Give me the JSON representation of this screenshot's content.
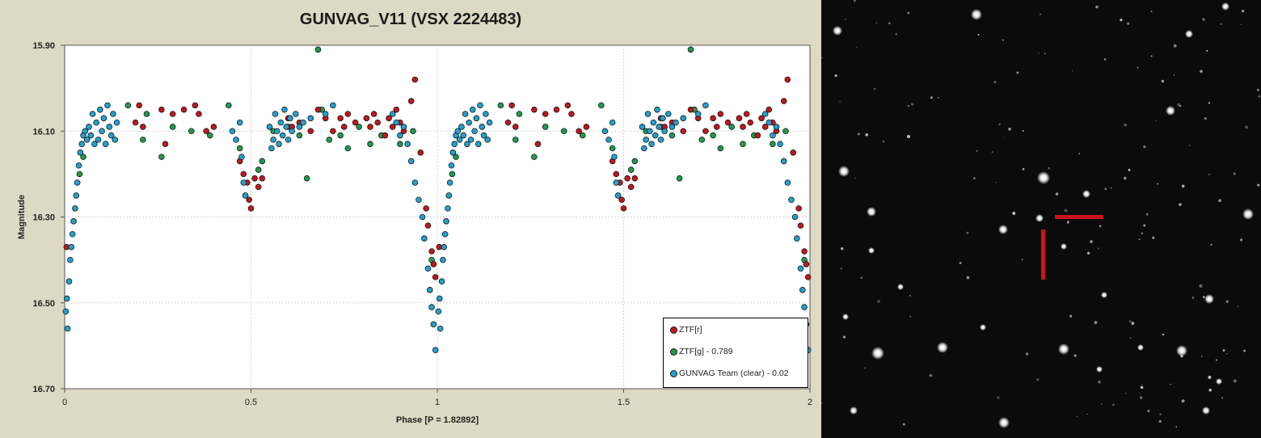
{
  "chart_data": {
    "type": "scatter",
    "title": "GUNVAG_V11 (VSX 2224483)",
    "xlabel": "Phase [P = 1.82892]",
    "ylabel": "Magnitude",
    "xlim": [
      0,
      2
    ],
    "ylim": [
      16.7,
      15.9
    ],
    "y_inverted": true,
    "x_ticks": [
      "0",
      "0.5",
      "1",
      "1.5",
      "2"
    ],
    "y_ticks": [
      "15.90",
      "16.10",
      "16.30",
      "16.50",
      "16.70"
    ],
    "grid": true,
    "legend_position": "bottom-right",
    "repeated_phase_copy": true,
    "series": [
      {
        "name": "ZTF[r]",
        "color": "#c0171c",
        "points": [
          [
            0.005,
            16.37
          ],
          [
            0.19,
            16.08
          ],
          [
            0.2,
            16.04
          ],
          [
            0.21,
            16.09
          ],
          [
            0.26,
            16.05
          ],
          [
            0.27,
            16.13
          ],
          [
            0.29,
            16.06
          ],
          [
            0.32,
            16.05
          ],
          [
            0.35,
            16.04
          ],
          [
            0.36,
            16.06
          ],
          [
            0.38,
            16.1
          ],
          [
            0.4,
            16.09
          ],
          [
            0.47,
            16.17
          ],
          [
            0.48,
            16.2
          ],
          [
            0.49,
            16.22
          ],
          [
            0.495,
            16.26
          ],
          [
            0.5,
            16.28
          ],
          [
            0.51,
            16.21
          ],
          [
            0.52,
            16.23
          ],
          [
            0.53,
            16.21
          ],
          [
            0.6,
            16.07
          ],
          [
            0.61,
            16.09
          ],
          [
            0.63,
            16.08
          ],
          [
            0.66,
            16.1
          ],
          [
            0.68,
            16.05
          ],
          [
            0.7,
            16.07
          ],
          [
            0.72,
            16.1
          ],
          [
            0.74,
            16.07
          ],
          [
            0.75,
            16.09
          ],
          [
            0.76,
            16.06
          ],
          [
            0.78,
            16.08
          ],
          [
            0.81,
            16.07
          ],
          [
            0.82,
            16.09
          ],
          [
            0.83,
            16.06
          ],
          [
            0.84,
            16.08
          ],
          [
            0.86,
            16.11
          ],
          [
            0.87,
            16.07
          ],
          [
            0.88,
            16.09
          ],
          [
            0.89,
            16.05
          ],
          [
            0.9,
            16.08
          ],
          [
            0.91,
            16.1
          ],
          [
            0.93,
            16.03
          ],
          [
            0.94,
            15.98
          ],
          [
            0.955,
            16.15
          ],
          [
            0.97,
            16.28
          ],
          [
            0.975,
            16.32
          ],
          [
            0.985,
            16.38
          ],
          [
            0.99,
            16.41
          ],
          [
            0.995,
            16.44
          ],
          [
            1.005,
            16.37
          ],
          [
            1.19,
            16.08
          ],
          [
            1.2,
            16.04
          ],
          [
            1.21,
            16.09
          ],
          [
            1.26,
            16.05
          ],
          [
            1.27,
            16.13
          ],
          [
            1.29,
            16.06
          ],
          [
            1.32,
            16.05
          ],
          [
            1.35,
            16.04
          ],
          [
            1.36,
            16.06
          ],
          [
            1.38,
            16.1
          ],
          [
            1.4,
            16.09
          ],
          [
            1.47,
            16.17
          ],
          [
            1.48,
            16.2
          ],
          [
            1.49,
            16.22
          ],
          [
            1.495,
            16.26
          ],
          [
            1.5,
            16.28
          ],
          [
            1.51,
            16.21
          ],
          [
            1.52,
            16.23
          ],
          [
            1.53,
            16.21
          ],
          [
            1.6,
            16.07
          ],
          [
            1.61,
            16.09
          ],
          [
            1.63,
            16.08
          ],
          [
            1.66,
            16.1
          ],
          [
            1.68,
            16.05
          ],
          [
            1.7,
            16.07
          ],
          [
            1.72,
            16.1
          ],
          [
            1.74,
            16.07
          ],
          [
            1.75,
            16.09
          ],
          [
            1.76,
            16.06
          ],
          [
            1.78,
            16.08
          ],
          [
            1.81,
            16.07
          ],
          [
            1.82,
            16.09
          ],
          [
            1.83,
            16.06
          ],
          [
            1.84,
            16.08
          ],
          [
            1.86,
            16.11
          ],
          [
            1.87,
            16.07
          ],
          [
            1.88,
            16.09
          ],
          [
            1.89,
            16.05
          ],
          [
            1.9,
            16.08
          ],
          [
            1.91,
            16.1
          ],
          [
            1.93,
            16.03
          ],
          [
            1.94,
            15.98
          ],
          [
            1.955,
            16.15
          ],
          [
            1.97,
            16.28
          ],
          [
            1.975,
            16.32
          ],
          [
            1.985,
            16.38
          ],
          [
            1.99,
            16.41
          ],
          [
            1.995,
            16.44
          ]
        ]
      },
      {
        "name": "ZTF[g] - 0.789",
        "color": "#1e9a4e",
        "points": [
          [
            0.04,
            16.2
          ],
          [
            0.05,
            16.16
          ],
          [
            0.17,
            16.04
          ],
          [
            0.21,
            16.12
          ],
          [
            0.22,
            16.06
          ],
          [
            0.26,
            16.16
          ],
          [
            0.29,
            16.09
          ],
          [
            0.34,
            16.1
          ],
          [
            0.39,
            16.11
          ],
          [
            0.44,
            16.04
          ],
          [
            0.47,
            16.14
          ],
          [
            0.52,
            16.19
          ],
          [
            0.53,
            16.17
          ],
          [
            0.56,
            16.1
          ],
          [
            0.6,
            16.09
          ],
          [
            0.63,
            16.11
          ],
          [
            0.65,
            16.21
          ],
          [
            0.68,
            15.91
          ],
          [
            0.69,
            16.05
          ],
          [
            0.71,
            16.12
          ],
          [
            0.74,
            16.11
          ],
          [
            0.76,
            16.14
          ],
          [
            0.79,
            16.09
          ],
          [
            0.82,
            16.13
          ],
          [
            0.85,
            16.11
          ],
          [
            0.9,
            16.13
          ],
          [
            0.935,
            16.1
          ],
          [
            0.985,
            16.4
          ],
          [
            1.04,
            16.2
          ],
          [
            1.05,
            16.16
          ],
          [
            1.17,
            16.04
          ],
          [
            1.21,
            16.12
          ],
          [
            1.22,
            16.06
          ],
          [
            1.26,
            16.16
          ],
          [
            1.29,
            16.09
          ],
          [
            1.34,
            16.1
          ],
          [
            1.39,
            16.11
          ],
          [
            1.44,
            16.04
          ],
          [
            1.47,
            16.14
          ],
          [
            1.52,
            16.19
          ],
          [
            1.53,
            16.17
          ],
          [
            1.56,
            16.1
          ],
          [
            1.6,
            16.09
          ],
          [
            1.63,
            16.11
          ],
          [
            1.65,
            16.21
          ],
          [
            1.68,
            15.91
          ],
          [
            1.69,
            16.05
          ],
          [
            1.71,
            16.12
          ],
          [
            1.74,
            16.11
          ],
          [
            1.76,
            16.14
          ],
          [
            1.79,
            16.09
          ],
          [
            1.82,
            16.13
          ],
          [
            1.85,
            16.11
          ],
          [
            1.9,
            16.13
          ],
          [
            1.935,
            16.1
          ],
          [
            1.985,
            16.4
          ]
        ]
      },
      {
        "name": "GUNVAG Team (clear) - 0.02",
        "color": "#21a1cf",
        "points": [
          [
            0.003,
            16.52
          ],
          [
            0.006,
            16.49
          ],
          [
            0.008,
            16.56
          ],
          [
            0.012,
            16.45
          ],
          [
            0.015,
            16.4
          ],
          [
            0.018,
            16.37
          ],
          [
            0.021,
            16.34
          ],
          [
            0.024,
            16.31
          ],
          [
            0.028,
            16.28
          ],
          [
            0.031,
            16.25
          ],
          [
            0.034,
            16.22
          ],
          [
            0.038,
            16.18
          ],
          [
            0.042,
            16.15
          ],
          [
            0.046,
            16.13
          ],
          [
            0.05,
            16.11
          ],
          [
            0.055,
            16.1
          ],
          [
            0.06,
            16.12
          ],
          [
            0.065,
            16.09
          ],
          [
            0.07,
            16.11
          ],
          [
            0.075,
            16.06
          ],
          [
            0.08,
            16.13
          ],
          [
            0.085,
            16.08
          ],
          [
            0.09,
            16.12
          ],
          [
            0.095,
            16.05
          ],
          [
            0.1,
            16.1
          ],
          [
            0.105,
            16.07
          ],
          [
            0.11,
            16.13
          ],
          [
            0.115,
            16.04
          ],
          [
            0.12,
            16.09
          ],
          [
            0.125,
            16.11
          ],
          [
            0.13,
            16.06
          ],
          [
            0.135,
            16.12
          ],
          [
            0.14,
            16.08
          ],
          [
            0.45,
            16.1
          ],
          [
            0.46,
            16.12
          ],
          [
            0.47,
            16.08
          ],
          [
            0.475,
            16.16
          ],
          [
            0.48,
            16.22
          ],
          [
            0.485,
            16.25
          ],
          [
            0.55,
            16.09
          ],
          [
            0.555,
            16.14
          ],
          [
            0.56,
            16.12
          ],
          [
            0.565,
            16.06
          ],
          [
            0.57,
            16.1
          ],
          [
            0.575,
            16.13
          ],
          [
            0.58,
            16.08
          ],
          [
            0.585,
            16.11
          ],
          [
            0.59,
            16.05
          ],
          [
            0.595,
            16.09
          ],
          [
            0.6,
            16.12
          ],
          [
            0.605,
            16.07
          ],
          [
            0.61,
            16.1
          ],
          [
            0.62,
            16.06
          ],
          [
            0.63,
            16.09
          ],
          [
            0.64,
            16.08
          ],
          [
            0.66,
            16.07
          ],
          [
            0.7,
            16.06
          ],
          [
            0.72,
            16.04
          ],
          [
            0.88,
            16.06
          ],
          [
            0.89,
            16.08
          ],
          [
            0.9,
            16.11
          ],
          [
            0.91,
            16.09
          ],
          [
            0.92,
            16.13
          ],
          [
            0.93,
            16.17
          ],
          [
            0.94,
            16.22
          ],
          [
            0.95,
            16.26
          ],
          [
            0.96,
            16.3
          ],
          [
            0.965,
            16.35
          ],
          [
            0.975,
            16.42
          ],
          [
            0.98,
            16.47
          ],
          [
            0.985,
            16.51
          ],
          [
            0.99,
            16.55
          ],
          [
            0.995,
            16.61
          ],
          [
            1.003,
            16.52
          ],
          [
            1.006,
            16.49
          ],
          [
            1.008,
            16.56
          ],
          [
            1.012,
            16.45
          ],
          [
            1.015,
            16.4
          ],
          [
            1.018,
            16.37
          ],
          [
            1.021,
            16.34
          ],
          [
            1.024,
            16.31
          ],
          [
            1.028,
            16.28
          ],
          [
            1.031,
            16.25
          ],
          [
            1.034,
            16.22
          ],
          [
            1.038,
            16.18
          ],
          [
            1.042,
            16.15
          ],
          [
            1.046,
            16.13
          ],
          [
            1.05,
            16.11
          ],
          [
            1.055,
            16.1
          ],
          [
            1.06,
            16.12
          ],
          [
            1.065,
            16.09
          ],
          [
            1.07,
            16.11
          ],
          [
            1.075,
            16.06
          ],
          [
            1.08,
            16.13
          ],
          [
            1.085,
            16.08
          ],
          [
            1.09,
            16.12
          ],
          [
            1.095,
            16.05
          ],
          [
            1.1,
            16.1
          ],
          [
            1.105,
            16.07
          ],
          [
            1.11,
            16.13
          ],
          [
            1.115,
            16.04
          ],
          [
            1.12,
            16.09
          ],
          [
            1.125,
            16.11
          ],
          [
            1.13,
            16.06
          ],
          [
            1.135,
            16.12
          ],
          [
            1.14,
            16.08
          ],
          [
            1.45,
            16.1
          ],
          [
            1.46,
            16.12
          ],
          [
            1.47,
            16.08
          ],
          [
            1.475,
            16.16
          ],
          [
            1.48,
            16.22
          ],
          [
            1.485,
            16.25
          ],
          [
            1.55,
            16.09
          ],
          [
            1.555,
            16.14
          ],
          [
            1.56,
            16.12
          ],
          [
            1.565,
            16.06
          ],
          [
            1.57,
            16.1
          ],
          [
            1.575,
            16.13
          ],
          [
            1.58,
            16.08
          ],
          [
            1.585,
            16.11
          ],
          [
            1.59,
            16.05
          ],
          [
            1.595,
            16.09
          ],
          [
            1.6,
            16.12
          ],
          [
            1.605,
            16.07
          ],
          [
            1.61,
            16.1
          ],
          [
            1.62,
            16.06
          ],
          [
            1.63,
            16.09
          ],
          [
            1.64,
            16.08
          ],
          [
            1.66,
            16.07
          ],
          [
            1.7,
            16.06
          ],
          [
            1.72,
            16.04
          ],
          [
            1.88,
            16.06
          ],
          [
            1.89,
            16.08
          ],
          [
            1.9,
            16.11
          ],
          [
            1.91,
            16.09
          ],
          [
            1.92,
            16.13
          ],
          [
            1.93,
            16.17
          ],
          [
            1.94,
            16.22
          ],
          [
            1.95,
            16.26
          ],
          [
            1.96,
            16.3
          ],
          [
            1.965,
            16.35
          ],
          [
            1.975,
            16.42
          ],
          [
            1.98,
            16.47
          ],
          [
            1.985,
            16.51
          ],
          [
            1.99,
            16.55
          ],
          [
            1.995,
            16.61
          ]
        ]
      }
    ]
  },
  "sky_image": {
    "background": "#0b0b0b",
    "marker_color": "#c8141b"
  }
}
